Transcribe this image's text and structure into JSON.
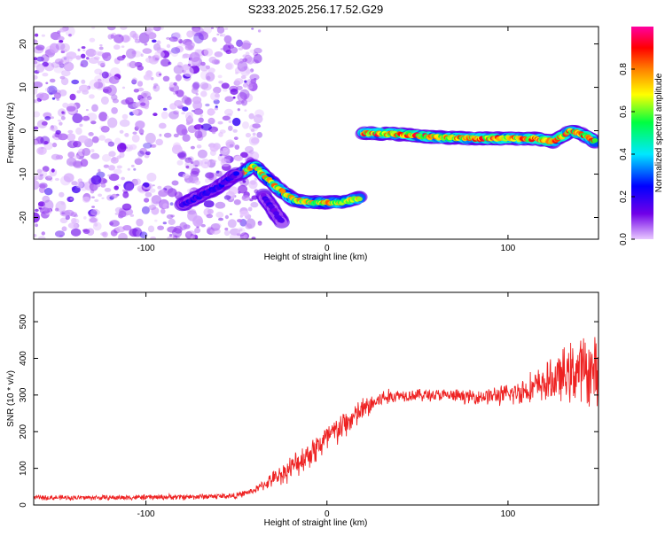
{
  "title": "S233.2025.256.17.52.G29",
  "chart_data": [
    {
      "type": "heatmap",
      "xlabel": "Height of straight line (km)",
      "ylabel": "Frequency (Hz)",
      "xlim": [
        -162,
        150
      ],
      "ylim": [
        -25,
        24
      ],
      "xticks": [
        -100,
        0,
        100
      ],
      "yticks": [
        -20,
        -10,
        0,
        10,
        20
      ],
      "colorbar": {
        "label": "Normalized spectral amplitude",
        "range": [
          0,
          1
        ],
        "ticks": [
          0.0,
          0.2,
          0.4,
          0.6,
          0.8
        ],
        "tick_labels": [
          "0.0",
          "0.2",
          "0.4",
          "0.6",
          "0.8"
        ],
        "colors": [
          "#e8c8ff",
          "#7000e8",
          "#0000ff",
          "#00e8ff",
          "#00ff40",
          "#ffff00",
          "#ff8000",
          "#ff0000",
          "#ff00a0"
        ]
      },
      "noise_region": {
        "x": [
          -162,
          -45
        ],
        "y": [
          -25,
          24
        ],
        "amplitude": 0.15
      },
      "tracks": [
        {
          "x": [
            -48,
            -40,
            -33,
            -25,
            -18,
            -10,
            0,
            8,
            18
          ],
          "y": [
            -10,
            -8,
            -11,
            -14,
            -16,
            -16.5,
            -16.5,
            -16.5,
            -15.5
          ],
          "peak": 0.85
        },
        {
          "x": [
            -80,
            -70,
            -60,
            -50
          ],
          "y": [
            -17,
            -15,
            -13,
            -10
          ],
          "peak": 0.25
        },
        {
          "x": [
            -35,
            -30,
            -25
          ],
          "y": [
            -15,
            -18,
            -21
          ],
          "peak": 0.2
        },
        {
          "x": [
            20,
            40,
            60,
            80,
            100,
            115,
            125,
            135,
            142,
            148
          ],
          "y": [
            -0.5,
            -0.8,
            -1.5,
            -1.8,
            -1.8,
            -1.8,
            -2.5,
            0,
            -1,
            -2.5
          ],
          "peak": 0.95
        }
      ]
    },
    {
      "type": "line",
      "xlabel": "Height of straight line (km)",
      "ylabel": "SNR (10 * v/v)",
      "xlim": [
        -162,
        150
      ],
      "ylim": [
        0,
        580
      ],
      "xticks": [
        -100,
        0,
        100
      ],
      "yticks": [
        0,
        100,
        200,
        300,
        400,
        500
      ],
      "color": "#ee2222",
      "trend": {
        "x": [
          -162,
          -120,
          -80,
          -50,
          -40,
          -30,
          -20,
          -10,
          0,
          10,
          20,
          30,
          40,
          60,
          80,
          100,
          120,
          140,
          150
        ],
        "y": [
          20,
          20,
          22,
          25,
          40,
          70,
          100,
          140,
          180,
          220,
          260,
          290,
          300,
          300,
          295,
          300,
          330,
          370,
          360
        ]
      },
      "noise_amplitude": {
        "x": [
          -162,
          -40,
          -20,
          0,
          20,
          40,
          80,
          100,
          120,
          140,
          150
        ],
        "y": [
          8,
          10,
          40,
          55,
          40,
          20,
          22,
          35,
          60,
          110,
          110
        ]
      }
    }
  ]
}
